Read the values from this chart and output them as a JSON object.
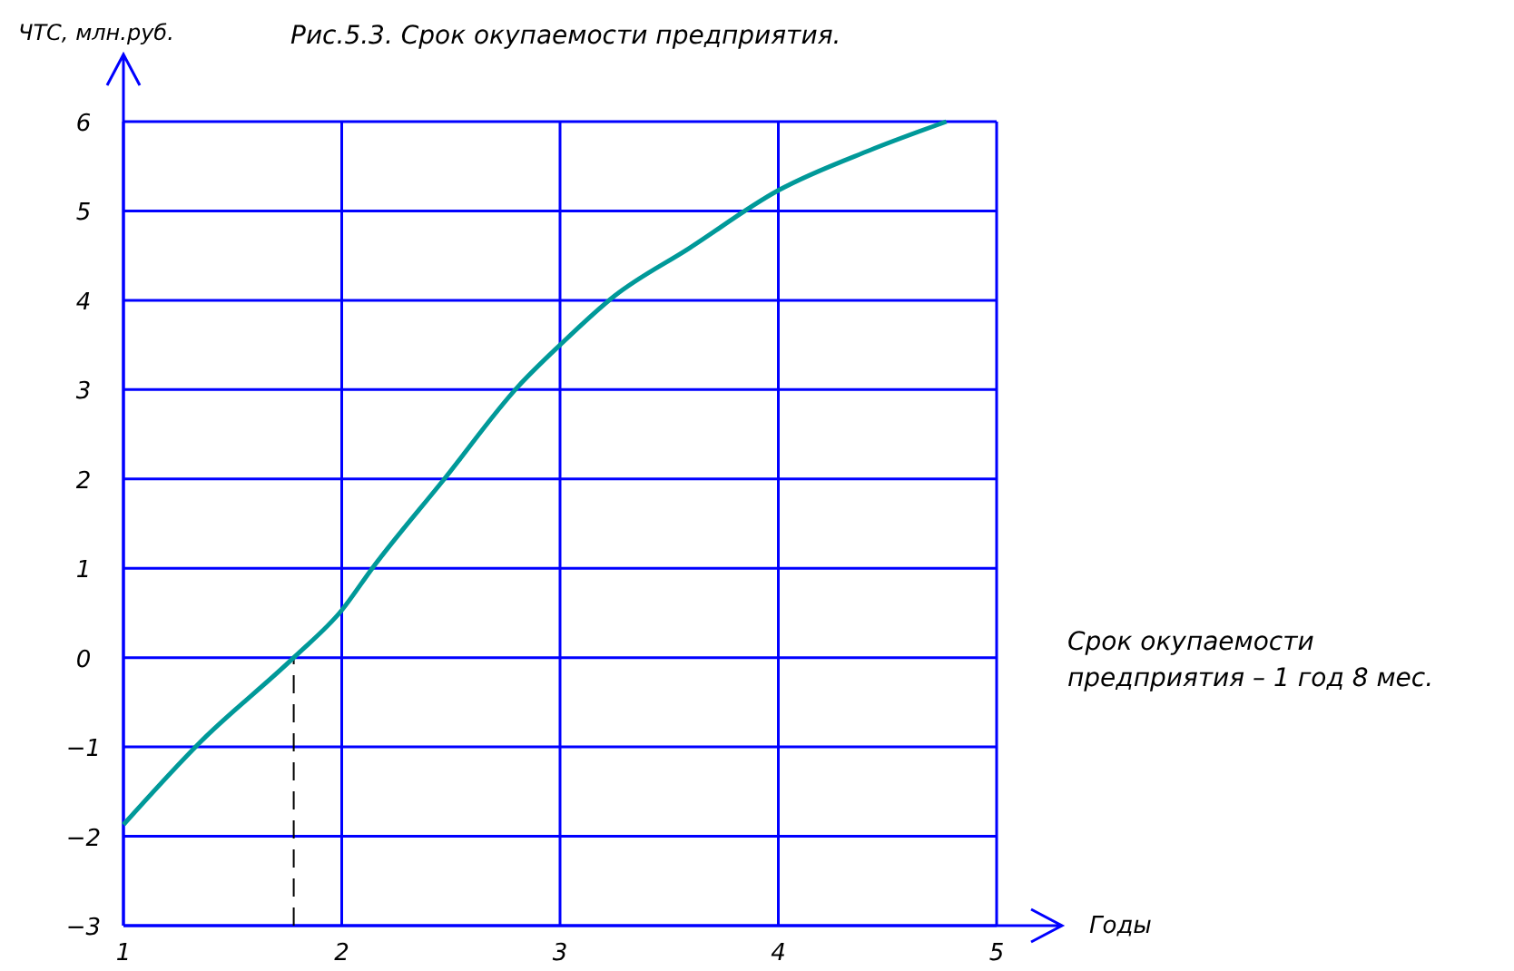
{
  "chart_data": {
    "type": "line",
    "title": "Рис.5.3. Срок окупаемости предприятия.",
    "xlabel": "Годы",
    "ylabel": "ЧТС, млн.руб.",
    "x": [
      1,
      1.35,
      1.78,
      2,
      2.14,
      2.47,
      2.81,
      3,
      3.25,
      3.59,
      4,
      4.42,
      4.77
    ],
    "series": [
      {
        "color": "#009999",
        "values": [
          -1.87,
          -0.95,
          0,
          0.53,
          1.0,
          2.0,
          3.04,
          3.5,
          4.05,
          4.58,
          5.23,
          5.68,
          6.0
        ]
      }
    ],
    "xlim": [
      1,
      5
    ],
    "xticks": [
      1,
      2,
      3,
      4,
      5
    ],
    "ylim": [
      -3,
      6
    ],
    "yticks": [
      -3,
      -2,
      -1,
      0,
      1,
      2,
      3,
      4,
      5,
      6
    ],
    "grid": true,
    "ref_lines": [
      {
        "axis": "x",
        "value": 1.78,
        "line_style": "dashed",
        "color": "#000000"
      }
    ],
    "annotations": [
      "Срок окупаемости предприятия – 1 год 8 мес."
    ]
  }
}
